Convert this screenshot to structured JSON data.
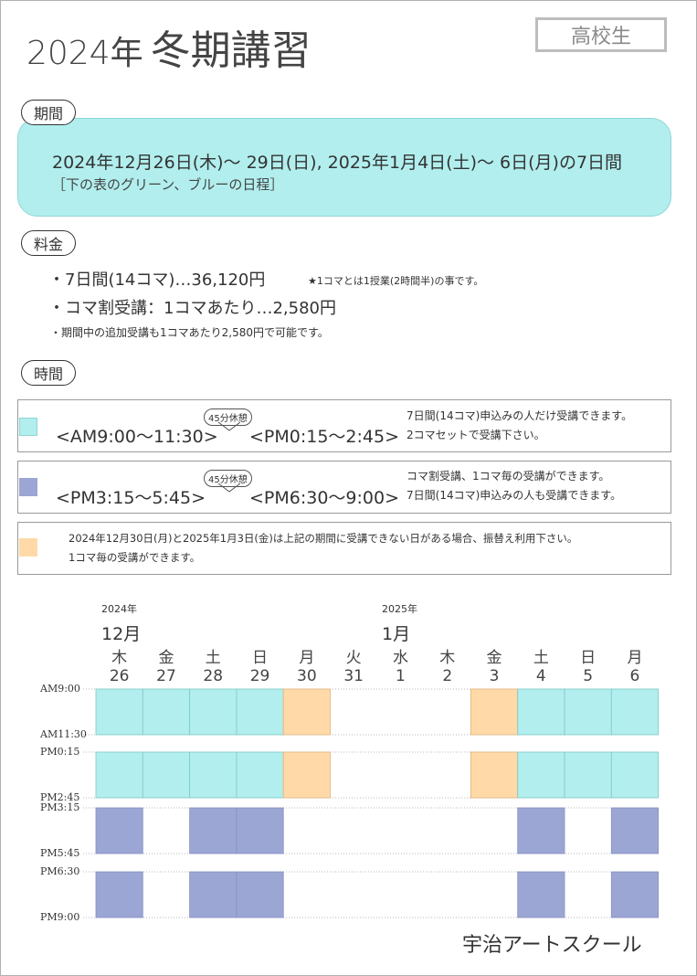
{
  "title": {
    "year": "2024年",
    "main": "冬期講習"
  },
  "badge": "高校生",
  "sections": {
    "period": "期間",
    "fee": "料金",
    "time": "時間"
  },
  "period": {
    "main": "2024年12月26日(木)〜 29日(日), 2025年1月4日(土)〜 6日(月)の7日間",
    "sub": "［下の表のグリーン、ブルーの日程］"
  },
  "fees": {
    "line1": "・7日間(14コマ)…36,120円",
    "line1_note": "★1コマとは1授業(2時間半)の事です。",
    "line2": "・コマ割受講：1コマあたり…2,580円",
    "line3": "・期間中の追加受講も1コマあたり2,580円で可能です。"
  },
  "time_rows": [
    {
      "color": "#b2eeee",
      "slot1": "<AM9:00〜11:30>",
      "break": "45分休憩",
      "slot2": "<PM0:15〜2:45>",
      "note1": "7日間(14コマ)申込みの人だけ受講できます。",
      "note2": "2コマセットで受講下さい。"
    },
    {
      "color": "#9ba6d4",
      "slot1": "<PM3:15〜5:45>",
      "break": "45分休憩",
      "slot2": "<PM6:30〜9:00>",
      "note1": "コマ割受講、1コマ毎の受講ができます。",
      "note2": "7日間(14コマ)申込みの人も受講できます。"
    },
    {
      "color": "#ffdaa8",
      "note1": "2024年12月30日(月)と2025年1月3日(金)は上記の期間に受講できない日がある場合、振替え利用下さい。",
      "note2": "1コマ毎の受講ができます。"
    }
  ],
  "calendar": {
    "year1": "2024年",
    "month1": "12月",
    "year2": "2025年",
    "month2": "1月",
    "days": [
      {
        "dow": "木",
        "date": "26"
      },
      {
        "dow": "金",
        "date": "27"
      },
      {
        "dow": "土",
        "date": "28"
      },
      {
        "dow": "日",
        "date": "29"
      },
      {
        "dow": "月",
        "date": "30"
      },
      {
        "dow": "火",
        "date": "31"
      },
      {
        "dow": "水",
        "date": "1"
      },
      {
        "dow": "木",
        "date": "2"
      },
      {
        "dow": "金",
        "date": "3"
      },
      {
        "dow": "土",
        "date": "4"
      },
      {
        "dow": "日",
        "date": "5"
      },
      {
        "dow": "月",
        "date": "6"
      }
    ],
    "time_labels": [
      "AM9:00",
      "AM11:30",
      "PM0:15",
      "PM2:45",
      "PM3:15",
      "PM5:45",
      "PM6:30",
      "PM9:00"
    ],
    "colors": {
      "green": "#b2eeee",
      "blue": "#9ba6d4",
      "orange": "#ffdaa8"
    },
    "block_key": "g = green, o = orange, b = blue, - = none",
    "blocks": [
      {
        "name": "AM9:00-11:30",
        "cells": [
          "g",
          "g",
          "g",
          "g",
          "o",
          "-",
          "-",
          "-",
          "o",
          "g",
          "g",
          "g"
        ]
      },
      {
        "name": "PM0:15-2:45",
        "cells": [
          "g",
          "g",
          "g",
          "g",
          "o",
          "-",
          "-",
          "-",
          "o",
          "g",
          "g",
          "g"
        ]
      },
      {
        "name": "PM3:15-5:45",
        "cells": [
          "b",
          "-",
          "b",
          "b",
          "-",
          "-",
          "-",
          "-",
          "-",
          "b",
          "-",
          "b"
        ]
      },
      {
        "name": "PM6:30-9:00",
        "cells": [
          "b",
          "-",
          "b",
          "b",
          "-",
          "-",
          "-",
          "-",
          "-",
          "b",
          "-",
          "b"
        ]
      }
    ]
  },
  "footer": "宇治アートスクール"
}
